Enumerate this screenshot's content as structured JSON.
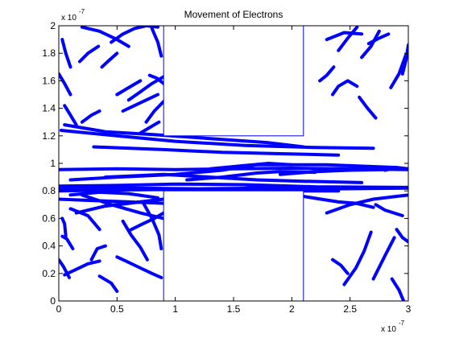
{
  "chart_data": {
    "type": "line",
    "title": "Movement of Electrons",
    "xlabel": "",
    "ylabel": "",
    "xlim": [
      0,
      3e-07
    ],
    "ylim": [
      0,
      2e-07
    ],
    "x_ticks": [
      {
        "value": 0,
        "label": "0"
      },
      {
        "value": 5e-08,
        "label": "0.5"
      },
      {
        "value": 1e-07,
        "label": "1"
      },
      {
        "value": 1.5e-07,
        "label": "1.5"
      },
      {
        "value": 2e-07,
        "label": "2"
      },
      {
        "value": 2.5e-07,
        "label": "2.5"
      },
      {
        "value": 3e-07,
        "label": "3"
      }
    ],
    "y_ticks": [
      {
        "value": 0,
        "label": "0"
      },
      {
        "value": 2e-08,
        "label": "0.2"
      },
      {
        "value": 4e-08,
        "label": "0.4"
      },
      {
        "value": 6e-08,
        "label": "0.6"
      },
      {
        "value": 8e-08,
        "label": "0.8"
      },
      {
        "value": 1e-07,
        "label": "1"
      },
      {
        "value": 1.2e-07,
        "label": "1.2"
      },
      {
        "value": 1.4e-07,
        "label": "1.4"
      },
      {
        "value": 1.6e-07,
        "label": "1.6"
      },
      {
        "value": 1.8e-07,
        "label": "1.8"
      },
      {
        "value": 2e-07,
        "label": "2"
      }
    ],
    "x_multiplier": {
      "base": "x 10",
      "exponent": "-7"
    },
    "y_multiplier": {
      "base": "x 10",
      "exponent": "-7"
    },
    "grid": false,
    "legend": "none",
    "colors": {
      "tracks": "#0000ff",
      "boundaries": "#0000ff",
      "axes": "#000000"
    },
    "boundary_boxes": [
      {
        "name": "upper-bottleneck-box",
        "x": [
          9e-08,
          2.1e-07
        ],
        "y": [
          1.2e-07,
          2e-07
        ]
      },
      {
        "name": "lower-bottleneck-box",
        "x": [
          9e-08,
          2.1e-07
        ],
        "y": [
          0,
          8e-08
        ]
      }
    ],
    "series": [
      {
        "x": [
          0.0,
          5e-08,
          1e-07,
          1.5e-07,
          2e-07,
          2.5e-07,
          3e-07
        ],
        "y": [
          9.55e-08,
          9.6e-08,
          9.55e-08,
          9.6e-08,
          9.65e-08,
          9.6e-08,
          9.55e-08
        ]
      },
      {
        "x": [
          0.0,
          6e-08,
          1.2e-07,
          1.8e-07,
          2.4e-07,
          3e-07
        ],
        "y": [
          8.15e-08,
          8.2e-08,
          8.15e-08,
          8.2e-08,
          8.15e-08,
          8.2e-08
        ]
      },
      {
        "x": [
          0.0,
          5e-08,
          1e-07,
          1.6e-07,
          2.2e-07,
          3e-07
        ],
        "y": [
          8.35e-08,
          8.4e-08,
          8.5e-08,
          8.45e-08,
          8.3e-08,
          8.25e-08
        ]
      },
      {
        "x": [
          0.0,
          4e-08,
          9e-08,
          1.4e-07,
          1.9e-07,
          2.4e-07
        ],
        "y": [
          8e-08,
          8.05e-08,
          8.1e-08,
          8.05e-08,
          8e-08,
          8e-08
        ]
      },
      {
        "x": [
          5e-09,
          4e-08,
          8e-08,
          1.3e-07,
          1.8e-07,
          2.1e-07
        ],
        "y": [
          1.28e-07,
          1.23e-07,
          1.21e-07,
          1.18e-07,
          1.15e-07,
          1.12e-07
        ]
      },
      {
        "x": [
          2e-09,
          5e-08,
          1e-07,
          1.6e-07,
          2.2e-07,
          2.7e-07
        ],
        "y": [
          1.24e-07,
          1.2e-07,
          1.16e-07,
          1.13e-07,
          1.115e-07,
          1.11e-07
        ]
      },
      {
        "x": [
          3e-08,
          9e-08,
          1.4e-07,
          1.9e-07,
          2.4e-07
        ],
        "y": [
          1.12e-07,
          1.1e-07,
          1.08e-07,
          1.07e-07,
          1.06e-07
        ]
      },
      {
        "x": [
          1e-08,
          5e-08,
          1e-07,
          1.4e-07,
          1.7e-07,
          2.3e-07,
          2.9e-07
        ],
        "y": [
          8.8e-08,
          9e-08,
          9.2e-08,
          9.5e-08,
          9.9e-08,
          9.9e-08,
          9.7e-08
        ]
      },
      {
        "x": [
          4e-08,
          9e-08,
          1.3e-07,
          1.7e-07,
          2.1e-07,
          2.6e-07
        ],
        "y": [
          9e-08,
          9.2e-08,
          9e-08,
          8.8e-08,
          8.7e-08,
          8.6e-08
        ]
      },
      {
        "x": [
          1.1e-07,
          1.4e-07,
          1.7e-07,
          1.9e-07,
          2.2e-07
        ],
        "y": [
          8.8e-08,
          9e-08,
          9.3e-08,
          9.4e-08,
          9.35e-08
        ]
      },
      {
        "x": [
          1.3e-07,
          1.6e-07,
          1.8e-07,
          2e-07
        ],
        "y": [
          9.6e-08,
          9.85e-08,
          1e-07,
          9.9e-08
        ]
      },
      {
        "x": [
          4e-08,
          7e-08,
          1e-07,
          1.3e-07,
          1.6e-07,
          1.9e-07
        ],
        "y": [
          6.9e-08,
          7.2e-08,
          7.5e-08,
          7.9e-08,
          8.2e-08,
          8.3e-08
        ]
      },
      {
        "x": [
          1.5e-08,
          4e-08,
          7e-08,
          9e-08
        ],
        "y": [
          6.4e-08,
          6.9e-08,
          7.2e-08,
          7.4e-08
        ]
      },
      {
        "x": [
          2e-08,
          4.5e-08,
          7e-08,
          9e-08
        ],
        "y": [
          7.7e-08,
          7e-08,
          6.4e-08,
          6e-08
        ]
      },
      {
        "x": [
          5.5e-08,
          6.2e-08,
          7e-08,
          7.6e-08
        ],
        "y": [
          5.8e-08,
          4.8e-08,
          3.9e-08,
          3e-08
        ]
      },
      {
        "x": [
          7.2e-08,
          8e-08,
          8.6e-08,
          8.8e-08
        ],
        "y": [
          7.2e-08,
          6e-08,
          4.8e-08,
          3.8e-08
        ]
      },
      {
        "x": [
          5e-08,
          6e-08,
          7e-08,
          8e-08,
          8.8e-08
        ],
        "y": [
          3.2e-08,
          2.8e-08,
          2.4e-08,
          2e-08,
          1.7e-08
        ]
      },
      {
        "x": [
          2.8e-08,
          3.3e-08,
          4e-08
        ],
        "y": [
          3e-08,
          3.8e-08,
          4e-08
        ]
      },
      {
        "x": [
          3e-09,
          7e-09,
          1.2e-08
        ],
        "y": [
          4.7e-08,
          4.5e-08,
          3.8e-08
        ]
      },
      {
        "x": [
          0.0,
          4e-09,
          9e-09
        ],
        "y": [
          3e-08,
          2.5e-08,
          1.7e-08
        ]
      },
      {
        "x": [
          3e-09,
          5e-09,
          6e-09
        ],
        "y": [
          6e-08,
          5.6e-08,
          4.7e-08
        ]
      },
      {
        "x": [
          3.5e-08,
          4.5e-08,
          5e-08
        ],
        "y": [
          1.8e-08,
          1.3e-08,
          7e-09
        ]
      },
      {
        "x": [
          1e-08,
          2.5e-08,
          3.5e-08
        ],
        "y": [
          6.7e-08,
          6.2e-08,
          5.2e-08
        ]
      },
      {
        "x": [
          6e-08,
          7.2e-08,
          8.2e-08,
          9e-08
        ],
        "y": [
          5.1e-08,
          5.6e-08,
          6e-08,
          6.4e-08
        ]
      },
      {
        "x": [
          5e-09,
          1.5e-08,
          2.5e-08,
          3.5e-08
        ],
        "y": [
          1.9e-08,
          2.3e-08,
          2.7e-08,
          2.9e-08
        ]
      },
      {
        "x": [
          2.1e-07,
          2.25e-07,
          2.4e-07,
          2.55e-07,
          2.7e-07
        ],
        "y": [
          7.6e-08,
          7.4e-08,
          7.2e-08,
          7.1e-08,
          6.8e-08
        ]
      },
      {
        "x": [
          2.3e-07,
          2.5e-07,
          2.7e-07,
          2.9e-07,
          3e-07
        ],
        "y": [
          6.4e-08,
          7e-08,
          7.4e-08,
          7.6e-08,
          7.7e-08
        ]
      },
      {
        "x": [
          2.45e-07,
          2.55e-07,
          2.62e-07,
          2.68e-07
        ],
        "y": [
          1.2e-08,
          2.4e-08,
          3.6e-08,
          5e-08
        ]
      },
      {
        "x": [
          2.7e-07,
          2.8e-07,
          2.88e-07
        ],
        "y": [
          1.6e-08,
          3.3e-08,
          4.6e-08
        ]
      },
      {
        "x": [
          2.86e-07,
          2.92e-07,
          2.96e-07
        ],
        "y": [
          1.6e-08,
          8e-09,
          0.0
        ]
      },
      {
        "x": [
          2.35e-07,
          2.42e-07,
          2.48e-07
        ],
        "y": [
          3e-08,
          2.6e-08,
          2e-08
        ]
      },
      {
        "x": [
          2.72e-07,
          2.8e-07,
          2.95e-07
        ],
        "y": [
          7e-08,
          6.6e-08,
          6.2e-08
        ]
      },
      {
        "x": [
          2.9e-07,
          2.95e-07,
          3e-07
        ],
        "y": [
          5.2e-08,
          4.6e-08,
          4.3e-08
        ]
      },
      {
        "x": [
          2.8e-07,
          2.9e-07,
          3e-07
        ],
        "y": [
          9.5e-08,
          9.7e-08,
          9.6e-08
        ]
      },
      {
        "x": [
          2.35e-07,
          2.4e-07,
          2.48e-07,
          2.56e-07
        ],
        "y": [
          1.5e-07,
          1.56e-07,
          1.6e-07,
          1.56e-07
        ]
      },
      {
        "x": [
          2.3e-07,
          2.45e-07,
          2.6e-07
        ],
        "y": [
          1.9e-07,
          1.95e-07,
          1.94e-07
        ]
      },
      {
        "x": [
          2.4e-07,
          2.48e-07,
          2.56e-07
        ],
        "y": [
          1.82e-07,
          1.91e-07,
          1.99e-07
        ]
      },
      {
        "x": [
          2.6e-07,
          2.68e-07,
          2.75e-07
        ],
        "y": [
          1.77e-07,
          1.85e-07,
          1.96e-07
        ]
      },
      {
        "x": [
          2.85e-07,
          2.92e-07,
          2.98e-07
        ],
        "y": [
          1.55e-07,
          1.65e-07,
          1.79e-07
        ]
      },
      {
        "x": [
          2.95e-07,
          2.98e-07,
          3e-07
        ],
        "y": [
          1.65e-07,
          1.75e-07,
          1.86e-07
        ]
      },
      {
        "x": [
          2.58e-07,
          2.65e-07,
          2.72e-07
        ],
        "y": [
          1.48e-07,
          1.4e-07,
          1.33e-07
        ]
      },
      {
        "x": [
          2.24e-07,
          2.3e-07,
          2.36e-07
        ],
        "y": [
          1.6e-07,
          1.64e-07,
          1.7e-07
        ]
      },
      {
        "x": [
          2.66e-07,
          2.75e-07,
          2.83e-07
        ],
        "y": [
          1.87e-07,
          1.91e-07,
          1.94e-07
        ]
      },
      {
        "x": [
          2e-08,
          3.5e-08,
          5e-08,
          6e-08
        ],
        "y": [
          1.99e-07,
          1.96e-07,
          1.9e-07,
          1.85e-07
        ]
      },
      {
        "x": [
          1.8e-08,
          2.5e-08,
          3.4e-08
        ],
        "y": [
          1.74e-07,
          1.8e-07,
          1.85e-07
        ]
      },
      {
        "x": [
          3.7e-08,
          4.2e-08,
          5e-08
        ],
        "y": [
          1.7e-07,
          1.74e-07,
          1.8e-07
        ]
      },
      {
        "x": [
          4.5e-08,
          5.5e-08,
          6.5e-08,
          7.5e-08,
          8.5e-08
        ],
        "y": [
          1.88e-07,
          1.94e-07,
          1.98e-07,
          2e-07,
          1.99e-07
        ]
      },
      {
        "x": [
          8e-08,
          8.5e-08,
          8.8e-08
        ],
        "y": [
          1.98e-07,
          1.88e-07,
          1.78e-07
        ]
      },
      {
        "x": [
          5e-08,
          6e-08,
          7e-08
        ],
        "y": [
          1.5e-07,
          1.55e-07,
          1.6e-07
        ]
      },
      {
        "x": [
          5.5e-08,
          6.5e-08,
          7.5e-08,
          8.5e-08
        ],
        "y": [
          1.38e-07,
          1.42e-07,
          1.46e-07,
          1.5e-07
        ]
      },
      {
        "x": [
          6e-08,
          7e-08,
          8e-08,
          9e-08
        ],
        "y": [
          1.46e-07,
          1.52e-07,
          1.58e-07,
          1.63e-07
        ]
      },
      {
        "x": [
          5e-09,
          1e-08,
          1.5e-08
        ],
        "y": [
          1.42e-07,
          1.35e-07,
          1.28e-07
        ]
      },
      {
        "x": [
          2e-08,
          2.8e-08,
          3.5e-08
        ],
        "y": [
          1.3e-07,
          1.35e-07,
          1.38e-07
        ]
      },
      {
        "x": [
          7.5e-08,
          8.2e-08,
          9e-08
        ],
        "y": [
          1.3e-07,
          1.38e-07,
          1.45e-07
        ]
      },
      {
        "x": [
          7.8e-08,
          8.4e-08,
          9e-08
        ],
        "y": [
          1.64e-07,
          1.62e-07,
          1.58e-07
        ]
      },
      {
        "x": [
          3e-09,
          6e-09,
          1e-08
        ],
        "y": [
          1.9e-07,
          1.8e-07,
          1.7e-07
        ]
      },
      {
        "x": [
          7e-08,
          7.8e-08,
          8.6e-08
        ],
        "y": [
          1.22e-07,
          1.26e-07,
          1.3e-07
        ]
      },
      {
        "x": [
          0.0,
          5e-09,
          1e-08
        ],
        "y": [
          1.65e-07,
          1.58e-07,
          1.5e-07
        ]
      },
      {
        "x": [
          1.9e-07,
          2.2e-07,
          2.5e-07,
          2.8e-07
        ],
        "y": [
          9.2e-08,
          9.4e-08,
          9.5e-08,
          9.55e-08
        ]
      },
      {
        "x": [
          0.0,
          3e-08,
          6e-08,
          9e-08
        ],
        "y": [
          7.4e-08,
          7.3e-08,
          7.2e-08,
          7.1e-08
        ]
      },
      {
        "x": [
          1e-08,
          3.5e-08,
          6e-08,
          8.5e-08
        ],
        "y": [
          7.7e-08,
          7.9e-08,
          7.8e-08,
          7.5e-08
        ]
      }
    ]
  }
}
